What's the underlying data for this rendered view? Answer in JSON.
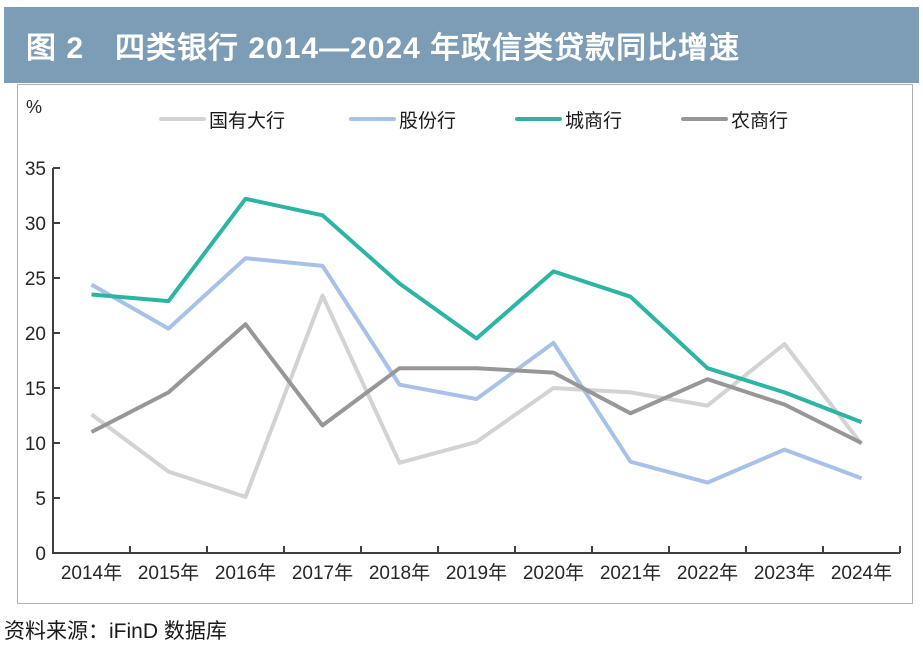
{
  "header": {
    "title": "图 2　四类银行 2014—2024 年政信类贷款同比增速",
    "bg_color": "#7D9CB6",
    "text_color": "#ffffff"
  },
  "unit_label": "%",
  "source_note": "资料来源：iFinD 数据库",
  "chart_data": {
    "type": "line",
    "title": "四类银行 2014—2024 年政信类贷款同比增速",
    "xlabel": "",
    "ylabel": "%",
    "ylim": [
      0,
      35
    ],
    "yticks": [
      0,
      5,
      10,
      15,
      20,
      25,
      30,
      35
    ],
    "grid": false,
    "legend_position": "top",
    "categories": [
      "2014年",
      "2015年",
      "2016年",
      "2017年",
      "2018年",
      "2019年",
      "2020年",
      "2021年",
      "2022年",
      "2023年",
      "2024年"
    ],
    "series": [
      {
        "name": "国有大行",
        "color": "#D3D3D3",
        "values": [
          12.6,
          7.4,
          5.1,
          23.4,
          8.2,
          10.1,
          15.0,
          14.6,
          13.4,
          19.0,
          9.9
        ]
      },
      {
        "name": "股份行",
        "color": "#A9C0E8",
        "values": [
          24.4,
          20.4,
          26.8,
          26.1,
          15.3,
          14.0,
          19.1,
          8.3,
          6.4,
          9.4,
          6.8
        ]
      },
      {
        "name": "城商行",
        "color": "#2BB5A2",
        "values": [
          23.5,
          22.9,
          32.2,
          30.7,
          24.5,
          19.5,
          25.6,
          23.3,
          16.8,
          14.6,
          11.9
        ]
      },
      {
        "name": "农商行",
        "color": "#979797",
        "values": [
          11.0,
          14.6,
          20.8,
          11.6,
          16.8,
          16.8,
          16.4,
          12.7,
          15.8,
          13.5,
          10.0
        ]
      }
    ],
    "axis_color": "#404040",
    "tick_label_color": "#262626"
  }
}
